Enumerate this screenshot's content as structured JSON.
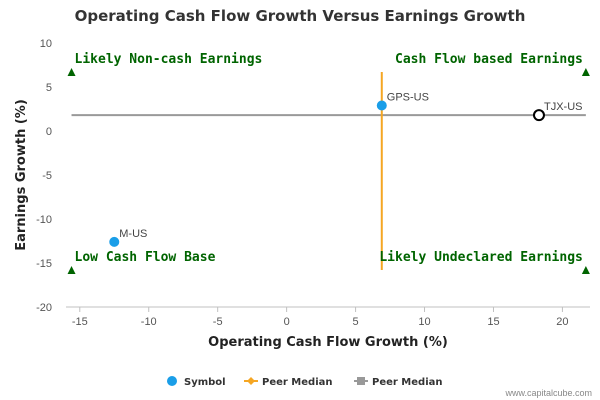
{
  "chart_data": {
    "type": "scatter",
    "title": "Operating Cash Flow Growth Versus Earnings Growth",
    "xlabel": "Operating Cash Flow Growth (%)",
    "ylabel": "Earnings Growth (%)",
    "xlim": [
      -16,
      22
    ],
    "ylim": [
      -20,
      10
    ],
    "xticks": [
      -15,
      -10,
      -5,
      0,
      5,
      10,
      15,
      20
    ],
    "yticks": [
      -20,
      -15,
      -10,
      -5,
      0,
      5,
      10
    ],
    "grid": false,
    "points": [
      {
        "label": "GPS-US",
        "x": 6.9,
        "y": 2.9,
        "style": "filled",
        "color": "#1a9ee8"
      },
      {
        "label": "TJX-US",
        "x": 18.3,
        "y": 1.8,
        "style": "hollow",
        "color": "#000000"
      },
      {
        "label": "M-US",
        "x": -12.5,
        "y": -12.6,
        "style": "filled",
        "color": "#1a9ee8"
      }
    ],
    "peer_median_x": {
      "value": 6.9,
      "y_range": [
        -15.8,
        6.7
      ],
      "color": "#f5a623"
    },
    "peer_median_y": {
      "value": 1.8,
      "x_range": [
        -15.6,
        21.7
      ],
      "color": "#999999"
    },
    "quadrant_labels": [
      {
        "text": "Likely Non-cash Earnings",
        "position": "top-left",
        "x": -15.6,
        "y": 6.7
      },
      {
        "text": "Cash Flow based Earnings",
        "position": "top-right",
        "x": 21.7,
        "y": 6.7
      },
      {
        "text": "Low Cash Flow Base",
        "position": "bottom-left",
        "x": -15.6,
        "y": -15.8
      },
      {
        "text": "Likely Undeclared Earnings",
        "position": "bottom-right",
        "x": 21.7,
        "y": -15.8
      }
    ],
    "quadrant_color": "#006400",
    "legend": {
      "placement": "bottom-center",
      "items": [
        {
          "label": "Symbol",
          "marker": "circle",
          "color": "#1a9ee8"
        },
        {
          "label": "Peer Median",
          "marker": "diamond-line",
          "color": "#f5a623"
        },
        {
          "label": "Peer Median",
          "marker": "square-line",
          "color": "#999999"
        }
      ]
    }
  },
  "credit": "www.capitalcube.com"
}
